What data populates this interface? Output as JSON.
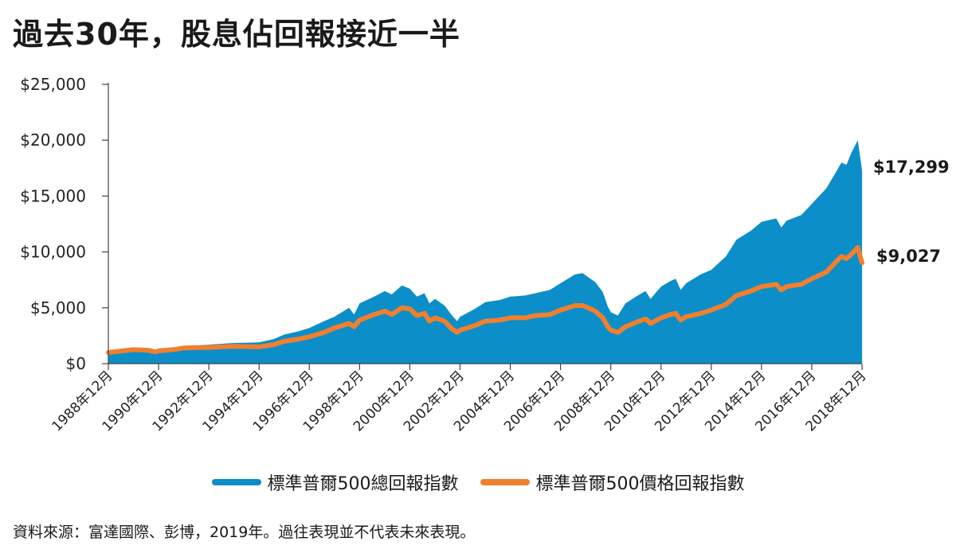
{
  "title": "過去30年，股息佔回報接近一半",
  "source": "資料來源：富達國際、彭博，2019年。過往表現並不代表未來表現。",
  "colors": {
    "total": "#0c8ec9",
    "price": "#f07f2e"
  },
  "chart_data": {
    "type": "area",
    "yticks": [
      "$0",
      "$5,000",
      "$10,000",
      "$15,000",
      "$20,000",
      "$25,000"
    ],
    "ylim": [
      0,
      25000
    ],
    "xlim": [
      1988.917,
      2018.917
    ],
    "xticks": [
      "1988年12月",
      "1990年12月",
      "1992年12月",
      "1994年12月",
      "1996年12月",
      "1998年12月",
      "2000年12月",
      "2002年12月",
      "2004年12月",
      "2006年12月",
      "2008年12月",
      "2010年12月",
      "2012年12月",
      "2014年12月",
      "2016年12月",
      "2018年12月"
    ],
    "legend": [
      "標準普爾500總回報指數",
      "標準普爾500價格回報指數"
    ],
    "series": [
      {
        "name": "標準普爾500總回報指數",
        "type": "area",
        "end_label": "$17,299",
        "points": [
          [
            1988.92,
            1000
          ],
          [
            1989.5,
            1200
          ],
          [
            1989.92,
            1300
          ],
          [
            1990.5,
            1250
          ],
          [
            1990.8,
            1120
          ],
          [
            1990.92,
            1260
          ],
          [
            1991.5,
            1380
          ],
          [
            1991.92,
            1550
          ],
          [
            1992.92,
            1700
          ],
          [
            1993.92,
            1850
          ],
          [
            1994.92,
            1900
          ],
          [
            1995.5,
            2200
          ],
          [
            1995.92,
            2600
          ],
          [
            1996.5,
            2900
          ],
          [
            1996.92,
            3200
          ],
          [
            1997.5,
            3800
          ],
          [
            1997.92,
            4200
          ],
          [
            1998.5,
            5000
          ],
          [
            1998.7,
            4400
          ],
          [
            1998.92,
            5400
          ],
          [
            1999.5,
            6000
          ],
          [
            1999.92,
            6500
          ],
          [
            2000.2,
            6200
          ],
          [
            2000.6,
            7000
          ],
          [
            2000.92,
            6700
          ],
          [
            2001.2,
            6000
          ],
          [
            2001.5,
            6300
          ],
          [
            2001.7,
            5400
          ],
          [
            2001.92,
            5800
          ],
          [
            2002.3,
            5200
          ],
          [
            2002.6,
            4300
          ],
          [
            2002.8,
            3800
          ],
          [
            2002.92,
            4200
          ],
          [
            2003.5,
            4900
          ],
          [
            2003.92,
            5500
          ],
          [
            2004.5,
            5700
          ],
          [
            2004.92,
            6000
          ],
          [
            2005.5,
            6100
          ],
          [
            2005.92,
            6300
          ],
          [
            2006.5,
            6600
          ],
          [
            2006.92,
            7200
          ],
          [
            2007.5,
            8000
          ],
          [
            2007.8,
            8100
          ],
          [
            2007.92,
            7900
          ],
          [
            2008.3,
            7300
          ],
          [
            2008.6,
            6400
          ],
          [
            2008.8,
            5100
          ],
          [
            2008.92,
            4600
          ],
          [
            2009.2,
            4300
          ],
          [
            2009.5,
            5400
          ],
          [
            2009.92,
            6000
          ],
          [
            2010.3,
            6500
          ],
          [
            2010.5,
            5800
          ],
          [
            2010.92,
            6900
          ],
          [
            2011.3,
            7400
          ],
          [
            2011.5,
            7600
          ],
          [
            2011.7,
            6600
          ],
          [
            2011.92,
            7200
          ],
          [
            2012.5,
            8000
          ],
          [
            2012.92,
            8400
          ],
          [
            2013.5,
            9600
          ],
          [
            2013.92,
            11100
          ],
          [
            2014.5,
            11900
          ],
          [
            2014.92,
            12700
          ],
          [
            2015.5,
            13000
          ],
          [
            2015.7,
            12200
          ],
          [
            2015.92,
            12800
          ],
          [
            2016.5,
            13300
          ],
          [
            2016.92,
            14300
          ],
          [
            2017.5,
            15700
          ],
          [
            2017.92,
            17300
          ],
          [
            2018.1,
            18000
          ],
          [
            2018.3,
            17800
          ],
          [
            2018.5,
            18900
          ],
          [
            2018.75,
            20000
          ],
          [
            2018.92,
            17299
          ]
        ]
      },
      {
        "name": "標準普爾500價格回報指數",
        "type": "line",
        "end_label": "$9,027",
        "points": [
          [
            1988.92,
            1000
          ],
          [
            1989.5,
            1150
          ],
          [
            1989.92,
            1250
          ],
          [
            1990.5,
            1200
          ],
          [
            1990.8,
            1050
          ],
          [
            1990.92,
            1150
          ],
          [
            1991.5,
            1250
          ],
          [
            1991.92,
            1400
          ],
          [
            1992.92,
            1450
          ],
          [
            1993.92,
            1550
          ],
          [
            1994.92,
            1500
          ],
          [
            1995.5,
            1700
          ],
          [
            1995.92,
            2000
          ],
          [
            1996.5,
            2200
          ],
          [
            1996.92,
            2400
          ],
          [
            1997.5,
            2800
          ],
          [
            1997.92,
            3200
          ],
          [
            1998.5,
            3600
          ],
          [
            1998.7,
            3300
          ],
          [
            1998.92,
            3900
          ],
          [
            1999.5,
            4400
          ],
          [
            1999.92,
            4700
          ],
          [
            2000.2,
            4400
          ],
          [
            2000.6,
            5000
          ],
          [
            2000.92,
            4900
          ],
          [
            2001.2,
            4300
          ],
          [
            2001.5,
            4500
          ],
          [
            2001.7,
            3800
          ],
          [
            2001.92,
            4100
          ],
          [
            2002.3,
            3800
          ],
          [
            2002.6,
            3100
          ],
          [
            2002.8,
            2800
          ],
          [
            2002.92,
            3000
          ],
          [
            2003.5,
            3400
          ],
          [
            2003.92,
            3800
          ],
          [
            2004.5,
            3900
          ],
          [
            2004.92,
            4100
          ],
          [
            2005.5,
            4100
          ],
          [
            2005.92,
            4300
          ],
          [
            2006.5,
            4400
          ],
          [
            2006.92,
            4800
          ],
          [
            2007.5,
            5200
          ],
          [
            2007.8,
            5200
          ],
          [
            2007.92,
            5100
          ],
          [
            2008.3,
            4700
          ],
          [
            2008.6,
            4100
          ],
          [
            2008.8,
            3300
          ],
          [
            2008.92,
            3000
          ],
          [
            2009.2,
            2800
          ],
          [
            2009.5,
            3300
          ],
          [
            2009.92,
            3700
          ],
          [
            2010.3,
            4000
          ],
          [
            2010.5,
            3600
          ],
          [
            2010.92,
            4100
          ],
          [
            2011.3,
            4400
          ],
          [
            2011.5,
            4500
          ],
          [
            2011.7,
            3900
          ],
          [
            2011.92,
            4200
          ],
          [
            2012.5,
            4500
          ],
          [
            2012.92,
            4800
          ],
          [
            2013.5,
            5300
          ],
          [
            2013.92,
            6100
          ],
          [
            2014.5,
            6500
          ],
          [
            2014.92,
            6900
          ],
          [
            2015.5,
            7100
          ],
          [
            2015.7,
            6600
          ],
          [
            2015.92,
            6900
          ],
          [
            2016.5,
            7100
          ],
          [
            2016.92,
            7600
          ],
          [
            2017.5,
            8200
          ],
          [
            2017.92,
            9200
          ],
          [
            2018.1,
            9600
          ],
          [
            2018.3,
            9400
          ],
          [
            2018.5,
            9800
          ],
          [
            2018.75,
            10400
          ],
          [
            2018.92,
            9027
          ]
        ]
      }
    ]
  }
}
